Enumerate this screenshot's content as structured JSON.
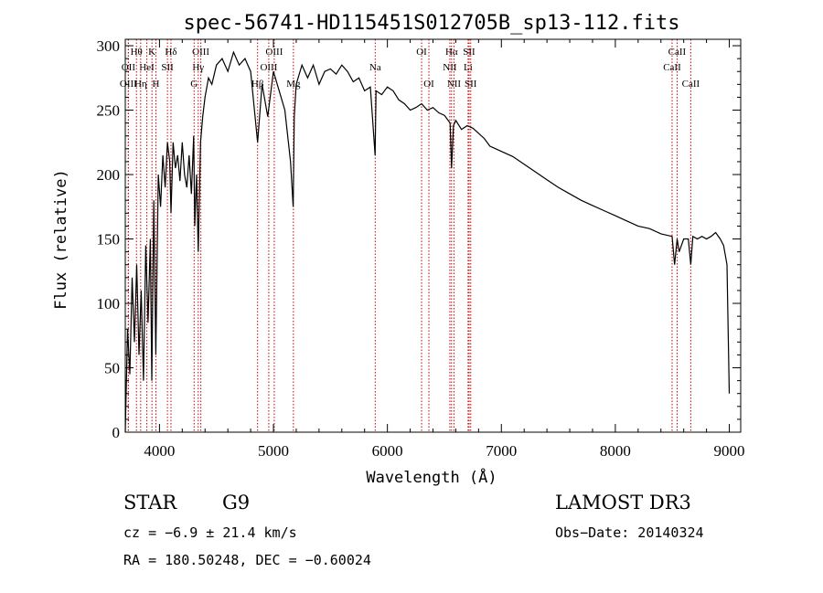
{
  "chart_data": {
    "type": "line",
    "title": "spec-56741-HD115451S012705B_sp13-112.fits",
    "xlabel": "Wavelength (Å)",
    "ylabel": "Flux (relative)",
    "xlim": [
      3700,
      9100
    ],
    "ylim": [
      0,
      305
    ],
    "xticks": [
      4000,
      5000,
      6000,
      7000,
      8000,
      9000
    ],
    "yticks": [
      0,
      50,
      100,
      150,
      200,
      250,
      300
    ],
    "series": [
      {
        "name": "spectrum",
        "x": [
          3700,
          3720,
          3740,
          3760,
          3780,
          3800,
          3820,
          3840,
          3860,
          3880,
          3900,
          3920,
          3933,
          3950,
          3968,
          3990,
          4010,
          4030,
          4050,
          4070,
          4090,
          4101,
          4120,
          4140,
          4160,
          4180,
          4200,
          4220,
          4240,
          4260,
          4280,
          4300,
          4310,
          4325,
          4340,
          4360,
          4380,
          4400,
          4430,
          4460,
          4500,
          4550,
          4600,
          4650,
          4700,
          4750,
          4800,
          4861,
          4900,
          4950,
          5000,
          5050,
          5100,
          5150,
          5173,
          5183,
          5200,
          5250,
          5300,
          5350,
          5400,
          5450,
          5500,
          5550,
          5600,
          5650,
          5700,
          5750,
          5800,
          5850,
          5892,
          5900,
          5950,
          6000,
          6050,
          6100,
          6150,
          6200,
          6250,
          6300,
          6350,
          6400,
          6450,
          6500,
          6550,
          6563,
          6580,
          6600,
          6650,
          6700,
          6750,
          6800,
          6850,
          6900,
          6950,
          7000,
          7100,
          7200,
          7300,
          7400,
          7500,
          7600,
          7700,
          7800,
          7900,
          8000,
          8100,
          8200,
          8300,
          8400,
          8498,
          8520,
          8542,
          8560,
          8600,
          8640,
          8662,
          8680,
          8720,
          8760,
          8800,
          8840,
          8880,
          8920,
          8950,
          8980,
          9000
        ],
        "y": [
          0,
          80,
          45,
          120,
          70,
          130,
          60,
          110,
          40,
          145,
          85,
          150,
          40,
          180,
          60,
          200,
          175,
          215,
          190,
          225,
          210,
          170,
          225,
          205,
          215,
          195,
          225,
          200,
          190,
          215,
          185,
          230,
          160,
          200,
          140,
          225,
          245,
          260,
          275,
          270,
          285,
          290,
          280,
          295,
          285,
          290,
          280,
          225,
          270,
          245,
          280,
          265,
          250,
          210,
          175,
          245,
          270,
          285,
          275,
          285,
          270,
          280,
          282,
          278,
          285,
          280,
          272,
          275,
          265,
          268,
          215,
          265,
          262,
          268,
          265,
          258,
          255,
          250,
          252,
          255,
          250,
          252,
          248,
          246,
          240,
          205,
          238,
          242,
          235,
          238,
          236,
          232,
          228,
          222,
          220,
          218,
          214,
          208,
          202,
          196,
          190,
          185,
          180,
          176,
          172,
          168,
          164,
          160,
          158,
          154,
          152,
          130,
          150,
          140,
          150,
          150,
          130,
          152,
          150,
          152,
          150,
          152,
          155,
          150,
          145,
          130,
          30
        ]
      }
    ]
  },
  "spectral_lines": [
    {
      "name": "Hθ",
      "wl": 3798,
      "row": 1
    },
    {
      "name": "OII",
      "wl": 3727,
      "row": 2
    },
    {
      "name": "OIII",
      "wl": 3727,
      "row": 3
    },
    {
      "name": "K",
      "wl": 3934,
      "row": 1
    },
    {
      "name": "HeI",
      "wl": 3889,
      "row": 2
    },
    {
      "name": "Hη",
      "wl": 3835,
      "row": 3
    },
    {
      "name": "SII",
      "wl": 4070,
      "row": 2
    },
    {
      "name": "H",
      "wl": 3969,
      "row": 3
    },
    {
      "name": "Hδ",
      "wl": 4101,
      "row": 1
    },
    {
      "name": "OIII",
      "wl": 4363,
      "row": 1
    },
    {
      "name": "Hγ",
      "wl": 4340,
      "row": 2
    },
    {
      "name": "G",
      "wl": 4304,
      "row": 3
    },
    {
      "name": "OIII",
      "wl": 5007,
      "row": 1
    },
    {
      "name": "OIII",
      "wl": 4959,
      "row": 2
    },
    {
      "name": "Hβ",
      "wl": 4861,
      "row": 3
    },
    {
      "name": "Mg",
      "wl": 5175,
      "row": 3
    },
    {
      "name": "Na",
      "wl": 5893,
      "row": 2
    },
    {
      "name": "OI",
      "wl": 6300,
      "row": 1
    },
    {
      "name": "OI",
      "wl": 6364,
      "row": 3
    },
    {
      "name": "Hα",
      "wl": 6563,
      "row": 1
    },
    {
      "name": "NII",
      "wl": 6548,
      "row": 2
    },
    {
      "name": "NII",
      "wl": 6584,
      "row": 3
    },
    {
      "name": "SII",
      "wl": 6717,
      "row": 1
    },
    {
      "name": "Li",
      "wl": 6708,
      "row": 2
    },
    {
      "name": "SII",
      "wl": 6731,
      "row": 3
    },
    {
      "name": "CaII",
      "wl": 8542,
      "row": 1
    },
    {
      "name": "CaII",
      "wl": 8498,
      "row": 2
    },
    {
      "name": "CaII",
      "wl": 8662,
      "row": 3
    }
  ],
  "info": {
    "object_class": "STAR",
    "subclass": "G9",
    "survey": "LAMOST DR3",
    "cz": "cz = −6.9 ± 21.4 km/s",
    "obs_date": "Obs−Date: 20140324",
    "coords": "RA = 180.50248, DEC =  −0.60024"
  },
  "colors": {
    "spectrum": "#000000",
    "line_marker": "#cc0000",
    "axis": "#000000"
  }
}
